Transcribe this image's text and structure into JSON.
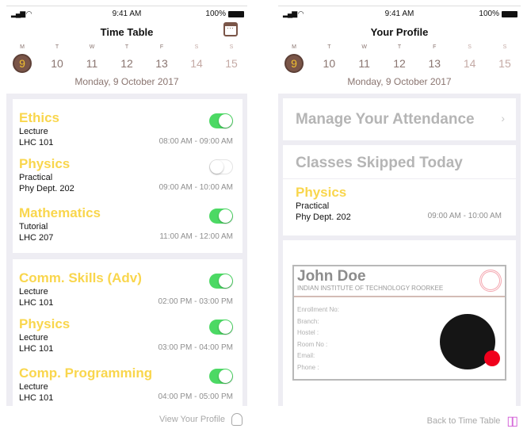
{
  "status": {
    "time": "9:41 AM",
    "battery": "100%"
  },
  "week": {
    "days": [
      {
        "letter": "M",
        "num": "9"
      },
      {
        "letter": "T",
        "num": "10"
      },
      {
        "letter": "W",
        "num": "11"
      },
      {
        "letter": "T",
        "num": "12"
      },
      {
        "letter": "F",
        "num": "13"
      },
      {
        "letter": "S",
        "num": "14"
      },
      {
        "letter": "S",
        "num": "15"
      }
    ],
    "selected": "9",
    "date": "Monday, 9 October 2017"
  },
  "timetable": {
    "title": "Time Table",
    "footer": "View Your Profile",
    "classes": [
      {
        "name": "Ethics",
        "type": "Lecture",
        "room": "LHC 101",
        "time": "08:00 AM - 09:00 AM",
        "attending": true
      },
      {
        "name": "Physics",
        "type": "Practical",
        "room": "Phy Dept. 202",
        "time": "09:00 AM - 10:00 AM",
        "attending": false
      },
      {
        "name": "Mathematics",
        "type": "Tutorial",
        "room": "LHC 207",
        "time": "11:00 AM - 12:00 AM",
        "attending": true
      },
      {
        "name": "Comm. Skills (Adv)",
        "type": "Lecture",
        "room": "LHC 101",
        "time": "02:00 PM - 03:00 PM",
        "attending": true
      },
      {
        "name": "Physics",
        "type": "Lecture",
        "room": "LHC 101",
        "time": "03:00 PM - 04:00 PM",
        "attending": true
      },
      {
        "name": "Comp. Programming",
        "type": "Lecture",
        "room": "LHC 101",
        "time": "04:00 PM - 05:00 PM",
        "attending": true
      }
    ]
  },
  "profile": {
    "title": "Your Profile",
    "manage": "Manage Your Attendance",
    "skipped_title": "Classes Skipped Today",
    "skipped": {
      "name": "Physics",
      "type": "Practical",
      "room": "Phy Dept. 202",
      "time": "09:00 AM - 10:00 AM"
    },
    "id": {
      "name": "John Doe",
      "institute": "INDIAN INSTITUTE OF TECHNOLOGY ROORKEE",
      "fields": [
        "Enrollment No:",
        "Branch:",
        "Hostel :",
        "Room No :",
        "Email:",
        "Phone :"
      ]
    },
    "footer": "Back to Time Table"
  },
  "colors": {
    "accent": "#7a5548",
    "subject": "#f9d64d",
    "toggle_on": "#4cd964",
    "status_dot": "#f0001c"
  }
}
